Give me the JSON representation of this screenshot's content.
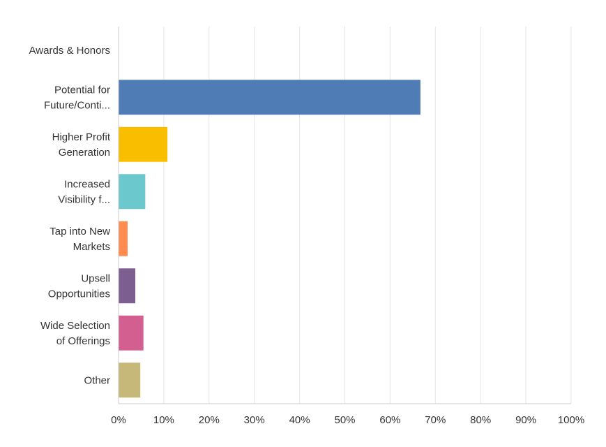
{
  "chart_data": {
    "type": "bar",
    "orientation": "horizontal",
    "title": "",
    "xlabel": "",
    "ylabel": "",
    "xlim": [
      0,
      100
    ],
    "tick_values": [
      0,
      10,
      20,
      30,
      40,
      50,
      60,
      70,
      80,
      90,
      100
    ],
    "tick_labels": [
      "0%",
      "10%",
      "20%",
      "30%",
      "40%",
      "50%",
      "60%",
      "70%",
      "80%",
      "90%",
      "100%"
    ],
    "grid": true,
    "categories": [
      [
        "Awards & Honors"
      ],
      [
        "Potential for",
        "Future/Conti..."
      ],
      [
        "Higher Profit",
        "Generation"
      ],
      [
        "Increased",
        "Visibility f..."
      ],
      [
        "Tap into New",
        "Markets"
      ],
      [
        "Upsell",
        "Opportunities"
      ],
      [
        "Wide Selection",
        "of Offerings"
      ],
      [
        "Other"
      ]
    ],
    "values": [
      0,
      66.7,
      10.8,
      5.9,
      2.0,
      3.7,
      5.5,
      4.8
    ],
    "colors": [
      "#507CB6",
      "#507CB6",
      "#F9BE00",
      "#6BC8CD",
      "#FF8B4F",
      "#7D5E90",
      "#D25F90",
      "#C6B879"
    ]
  }
}
